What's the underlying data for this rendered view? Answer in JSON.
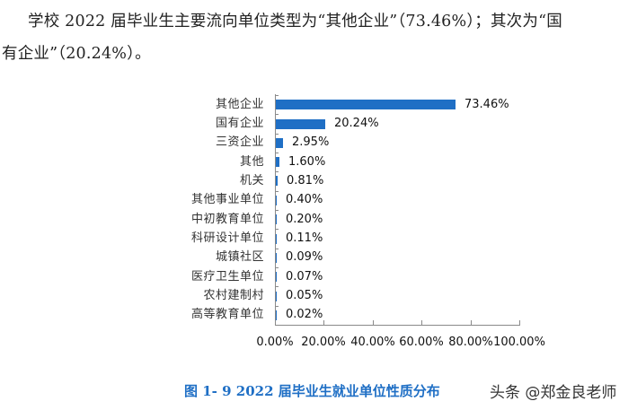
{
  "paragraph": {
    "line1": "学校 2022 届毕业生主要流向单位类型为“其他企业”（73.46%）；其次为“国",
    "line2": "有企业”（20.24%）。"
  },
  "chart_data": {
    "type": "bar",
    "orientation": "horizontal",
    "title": "图 1- 9  2022 届毕业生就业单位性质分布",
    "xlabel": "",
    "ylabel": "",
    "xlim": [
      0,
      100
    ],
    "x_ticks": [
      "0.00%",
      "20.00%",
      "40.00%",
      "60.00%",
      "80.00%",
      "100.00%"
    ],
    "grid": false,
    "legend": null,
    "bar_color": "#1f6fc5",
    "categories": [
      "其他企业",
      "国有企业",
      "三资企业",
      "其他",
      "机关",
      "其他事业单位",
      "中初教育单位",
      "科研设计单位",
      "城镇社区",
      "医疗卫生单位",
      "农村建制村",
      "高等教育单位"
    ],
    "values": [
      73.46,
      20.24,
      2.95,
      1.6,
      0.81,
      0.4,
      0.2,
      0.11,
      0.09,
      0.07,
      0.05,
      0.02
    ],
    "value_labels": [
      "73.46%",
      "20.24%",
      "2.95%",
      "1.60%",
      "0.81%",
      "0.40%",
      "0.20%",
      "0.11%",
      "0.09%",
      "0.07%",
      "0.05%",
      "0.02%"
    ]
  },
  "caption": "图 1- 9  2022 届毕业生就业单位性质分布",
  "watermark": "头条 @郑金良老师"
}
